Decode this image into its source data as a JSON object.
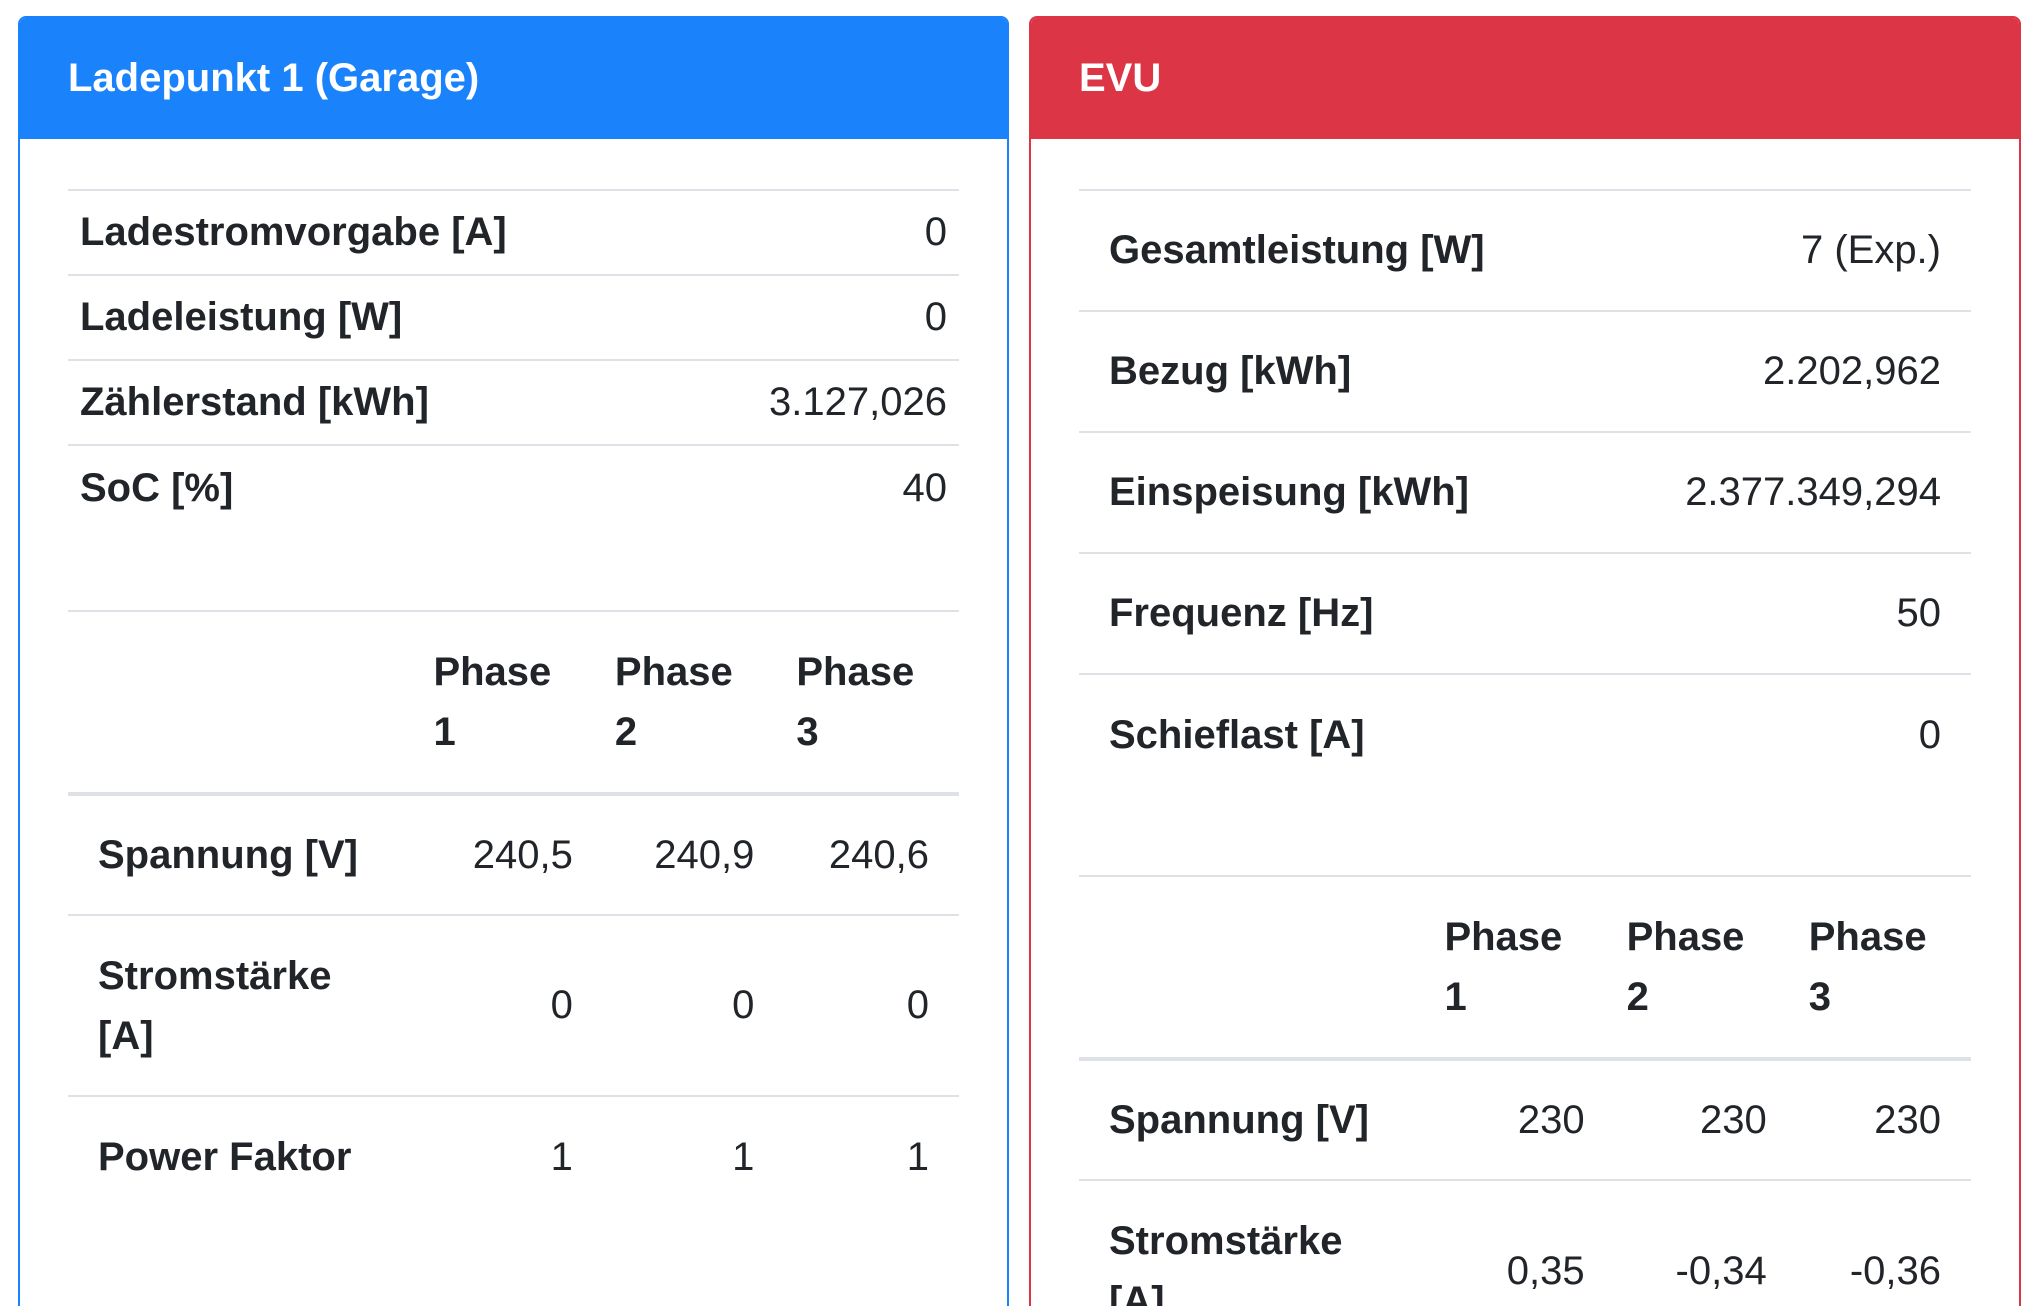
{
  "ladepunkt": {
    "title": "Ladepunkt 1 (Garage)",
    "rows": [
      {
        "label": "Ladestromvorgabe [A]",
        "value": "0"
      },
      {
        "label": "Ladeleistung [W]",
        "value": "0"
      },
      {
        "label": "Zählerstand [kWh]",
        "value": "3.127,026"
      },
      {
        "label": "SoC [%]",
        "value": "40"
      }
    ],
    "phase_headers": [
      "Phase 1",
      "Phase 2",
      "Phase 3"
    ],
    "phase_rows": [
      {
        "label": "Spannung [V]",
        "values": [
          "240,5",
          "240,9",
          "240,6"
        ]
      },
      {
        "label": "Stromstärke [A]",
        "values": [
          "0",
          "0",
          "0"
        ]
      },
      {
        "label": "Power Faktor",
        "values": [
          "1",
          "1",
          "1"
        ]
      }
    ]
  },
  "evu": {
    "title": "EVU",
    "rows": [
      {
        "label": "Gesamtleistung [W]",
        "value": "7 (Exp.)"
      },
      {
        "label": "Bezug [kWh]",
        "value": "2.202,962"
      },
      {
        "label": "Einspeisung [kWh]",
        "value": "2.377.349,294"
      },
      {
        "label": "Frequenz [Hz]",
        "value": "50"
      },
      {
        "label": "Schieflast [A]",
        "value": "0"
      }
    ],
    "phase_headers": [
      "Phase 1",
      "Phase 2",
      "Phase 3"
    ],
    "phase_rows": [
      {
        "label": "Spannung [V]",
        "values": [
          "230",
          "230",
          "230"
        ]
      },
      {
        "label": "Stromstärke [A]",
        "values": [
          "0,35",
          "-0,34",
          "-0,36"
        ]
      }
    ]
  },
  "colors": {
    "primary": "#1a82fb",
    "danger": "#dc3545",
    "border": "#dee2e6",
    "text": "#212529"
  }
}
